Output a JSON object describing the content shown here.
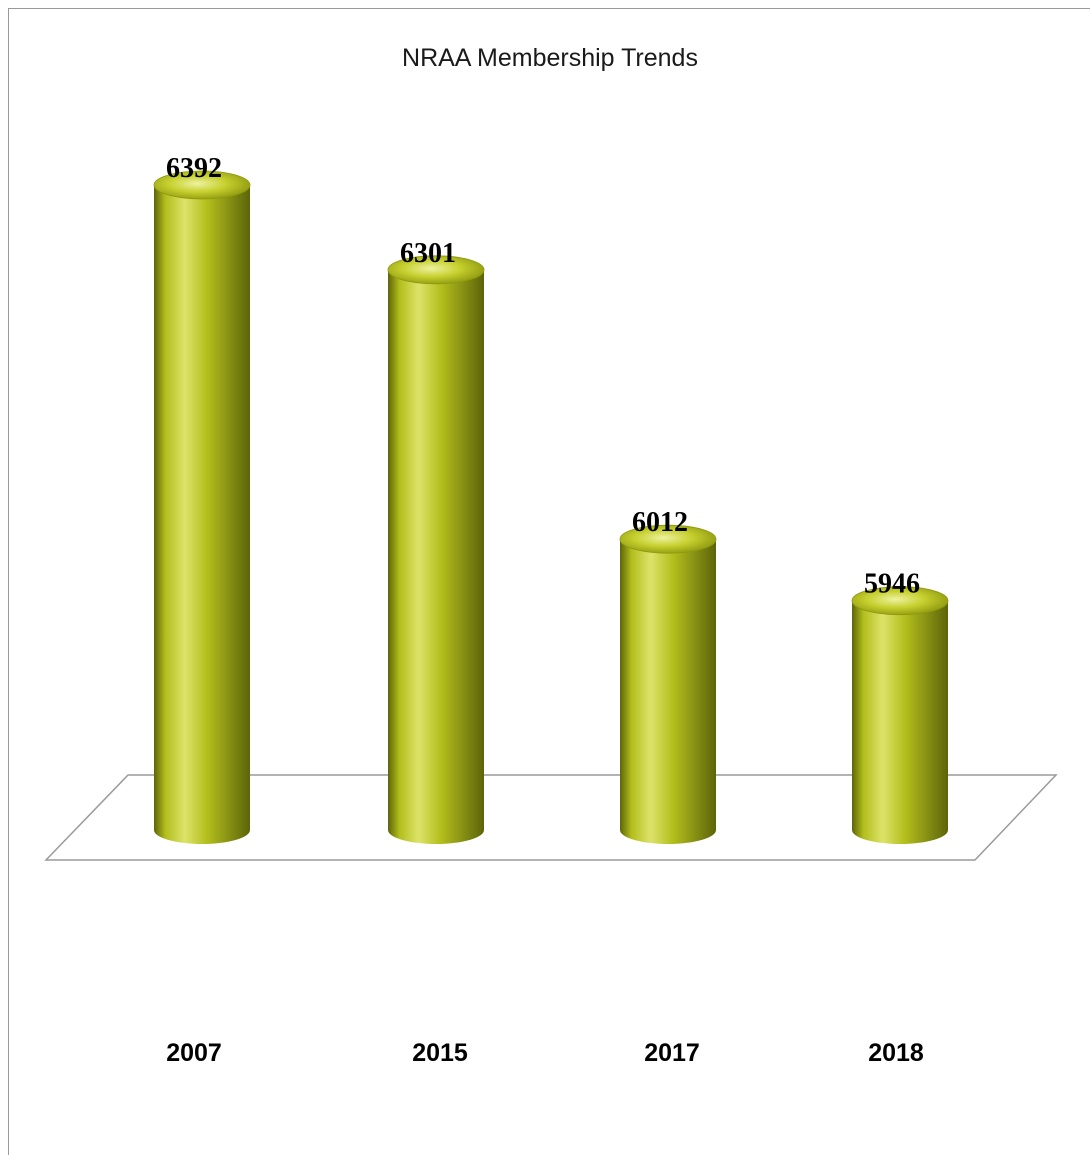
{
  "chart_data": {
    "type": "bar",
    "title": "NRAA Membership Trends",
    "categories": [
      "2007",
      "2015",
      "2017",
      "2018"
    ],
    "values": [
      6392,
      6301,
      6012,
      5946
    ],
    "xlabel": "",
    "ylabel": "",
    "grid": false,
    "legend": "none",
    "bar_style": "3d-cylinder",
    "colors": {
      "bar_light": "#dde36a",
      "bar_mid": "#b3bf1c",
      "bar_dark": "#5d640a",
      "floor_line": "#9a9a9a"
    }
  }
}
